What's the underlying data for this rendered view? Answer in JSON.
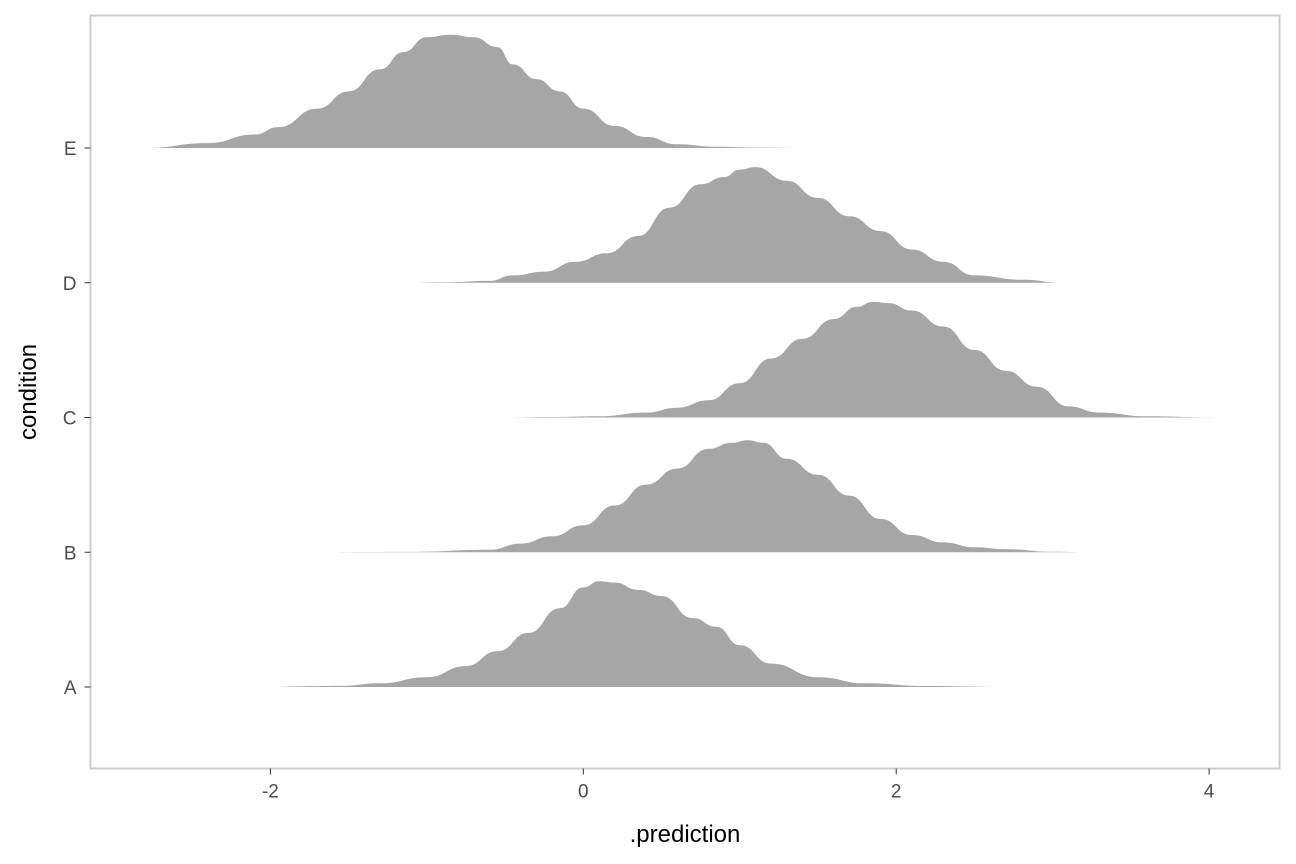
{
  "chart_data": {
    "type": "ridgeline-density",
    "xlabel": ".prediction",
    "ylabel": "condition",
    "xlim": [
      -3.15,
      4.45
    ],
    "x_ticks": [
      -2,
      0,
      2,
      4
    ],
    "x_tick_labels": [
      "-2",
      "0",
      "2",
      "4"
    ],
    "categories": [
      "A",
      "B",
      "C",
      "D",
      "E"
    ],
    "fill_color": "#a6a6a6",
    "panel_border_color": "#cccccc",
    "grid": false,
    "series": [
      {
        "category": "A",
        "x": [
          -2.03,
          -1.7,
          -1.55,
          -1.3,
          -1.0,
          -0.75,
          -0.55,
          -0.35,
          -0.15,
          0.0,
          0.1,
          0.2,
          0.35,
          0.5,
          0.7,
          0.85,
          1.0,
          1.2,
          1.5,
          1.8,
          2.2,
          2.7
        ],
        "density": [
          0.0,
          0.007,
          0.009,
          0.03,
          0.08,
          0.17,
          0.29,
          0.44,
          0.64,
          0.81,
          0.86,
          0.85,
          0.79,
          0.74,
          0.56,
          0.49,
          0.34,
          0.19,
          0.08,
          0.03,
          0.008,
          0.0
        ]
      },
      {
        "category": "B",
        "x": [
          -1.68,
          -1.4,
          -1.1,
          -0.6,
          -0.4,
          -0.2,
          0.0,
          0.2,
          0.4,
          0.6,
          0.8,
          0.95,
          1.05,
          1.15,
          1.3,
          1.5,
          1.7,
          1.9,
          2.1,
          2.3,
          2.5,
          2.7,
          3.0,
          3.22
        ],
        "density": [
          0.0,
          0.002,
          0.003,
          0.02,
          0.07,
          0.13,
          0.22,
          0.38,
          0.55,
          0.68,
          0.84,
          0.89,
          0.91,
          0.89,
          0.76,
          0.63,
          0.46,
          0.27,
          0.14,
          0.08,
          0.04,
          0.025,
          0.004,
          0.0
        ]
      },
      {
        "category": "C",
        "x": [
          -0.5,
          -0.2,
          0.1,
          0.4,
          0.6,
          0.8,
          1.0,
          1.2,
          1.4,
          1.6,
          1.75,
          1.85,
          1.95,
          2.1,
          2.3,
          2.5,
          2.7,
          2.9,
          3.1,
          3.3,
          3.6,
          4.05
        ],
        "density": [
          0.0,
          0.004,
          0.01,
          0.04,
          0.08,
          0.14,
          0.28,
          0.48,
          0.64,
          0.8,
          0.9,
          0.94,
          0.93,
          0.87,
          0.74,
          0.55,
          0.38,
          0.25,
          0.09,
          0.04,
          0.01,
          0.0
        ]
      },
      {
        "category": "D",
        "x": [
          -1.12,
          -0.9,
          -0.6,
          -0.45,
          -0.25,
          -0.05,
          0.15,
          0.35,
          0.55,
          0.75,
          0.9,
          1.0,
          1.1,
          1.3,
          1.5,
          1.7,
          1.9,
          2.1,
          2.3,
          2.5,
          2.8,
          3.08
        ],
        "density": [
          0.0,
          0.004,
          0.015,
          0.06,
          0.09,
          0.17,
          0.24,
          0.38,
          0.61,
          0.8,
          0.86,
          0.92,
          0.94,
          0.83,
          0.69,
          0.54,
          0.42,
          0.27,
          0.17,
          0.06,
          0.025,
          0.0
        ]
      },
      {
        "category": "E",
        "x": [
          -2.8,
          -2.4,
          -2.1,
          -1.95,
          -1.7,
          -1.5,
          -1.3,
          -1.15,
          -1.0,
          -0.85,
          -0.7,
          -0.55,
          -0.45,
          -0.3,
          -0.15,
          0.0,
          0.2,
          0.4,
          0.6,
          0.85,
          1.1,
          1.4
        ],
        "density": [
          0.0,
          0.04,
          0.11,
          0.17,
          0.32,
          0.46,
          0.64,
          0.78,
          0.9,
          0.92,
          0.9,
          0.82,
          0.68,
          0.56,
          0.46,
          0.32,
          0.18,
          0.09,
          0.03,
          0.01,
          0.003,
          0.0
        ]
      }
    ]
  }
}
